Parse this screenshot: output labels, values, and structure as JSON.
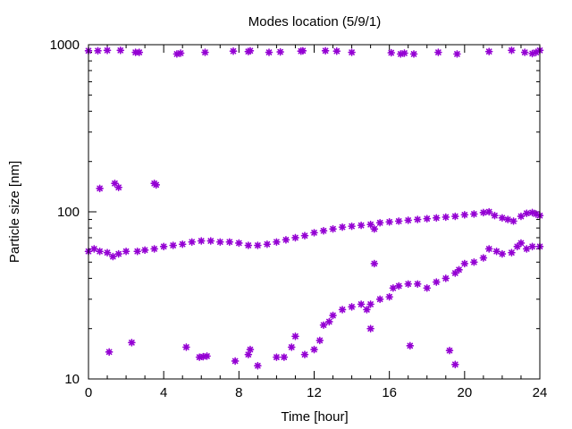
{
  "chart_data": {
    "type": "scatter",
    "title": "Modes location (5/9/1)",
    "xlabel": "Time [hour]",
    "ylabel": "Particle size [nm]",
    "xlim": [
      0,
      24
    ],
    "ylim": [
      10,
      1000
    ],
    "yscale": "log",
    "grid": false,
    "legend": "none",
    "marker": "star",
    "color": "#9400d3",
    "xticks": [
      0,
      4,
      8,
      12,
      16,
      20,
      24
    ],
    "xtick_labels": [
      "0",
      "4",
      "8",
      "12",
      "16",
      "20",
      "24"
    ],
    "yticks": [
      10,
      100,
      1000
    ],
    "ytick_labels": [
      "10",
      "100",
      "1000"
    ],
    "series": [
      {
        "name": "",
        "points": [
          [
            0.0,
            920
          ],
          [
            0.5,
            920
          ],
          [
            1.0,
            925
          ],
          [
            1.7,
            925
          ],
          [
            2.5,
            900
          ],
          [
            2.7,
            900
          ],
          [
            4.7,
            880
          ],
          [
            4.9,
            890
          ],
          [
            6.2,
            900
          ],
          [
            7.7,
            915
          ],
          [
            8.5,
            910
          ],
          [
            8.6,
            920
          ],
          [
            9.6,
            900
          ],
          [
            10.2,
            905
          ],
          [
            11.3,
            915
          ],
          [
            11.4,
            920
          ],
          [
            12.6,
            920
          ],
          [
            13.2,
            915
          ],
          [
            14.0,
            900
          ],
          [
            16.1,
            895
          ],
          [
            16.6,
            880
          ],
          [
            16.8,
            890
          ],
          [
            17.3,
            880
          ],
          [
            18.6,
            900
          ],
          [
            19.6,
            880
          ],
          [
            21.3,
            910
          ],
          [
            22.5,
            925
          ],
          [
            23.2,
            900
          ],
          [
            23.6,
            885
          ],
          [
            23.8,
            900
          ],
          [
            24.0,
            925
          ],
          [
            0.6,
            138
          ],
          [
            1.4,
            148
          ],
          [
            1.6,
            140
          ],
          [
            3.5,
            148
          ],
          [
            3.6,
            145
          ],
          [
            0.0,
            58
          ],
          [
            0.3,
            60
          ],
          [
            0.6,
            58
          ],
          [
            1.0,
            57
          ],
          [
            1.3,
            54
          ],
          [
            1.6,
            56
          ],
          [
            2.0,
            58
          ],
          [
            2.6,
            58
          ],
          [
            3.0,
            59
          ],
          [
            3.5,
            60
          ],
          [
            4.0,
            62
          ],
          [
            4.5,
            63
          ],
          [
            5.0,
            64
          ],
          [
            5.5,
            66
          ],
          [
            6.0,
            67
          ],
          [
            6.5,
            67
          ],
          [
            7.0,
            66
          ],
          [
            7.5,
            66
          ],
          [
            8.0,
            65
          ],
          [
            8.5,
            63
          ],
          [
            9.0,
            63
          ],
          [
            9.5,
            64
          ],
          [
            10.0,
            66
          ],
          [
            10.5,
            68
          ],
          [
            11.0,
            70
          ],
          [
            11.5,
            72
          ],
          [
            12.0,
            75
          ],
          [
            12.5,
            77
          ],
          [
            13.0,
            79
          ],
          [
            13.5,
            81
          ],
          [
            14.0,
            82
          ],
          [
            14.5,
            83
          ],
          [
            15.0,
            84
          ],
          [
            15.2,
            79
          ],
          [
            15.5,
            86
          ],
          [
            16.0,
            87
          ],
          [
            16.5,
            88
          ],
          [
            17.0,
            89
          ],
          [
            17.5,
            90
          ],
          [
            18.0,
            91
          ],
          [
            18.5,
            92
          ],
          [
            19.0,
            93
          ],
          [
            19.5,
            94
          ],
          [
            20.0,
            96
          ],
          [
            20.5,
            97
          ],
          [
            21.0,
            99
          ],
          [
            21.3,
            100
          ],
          [
            21.6,
            95
          ],
          [
            22.0,
            92
          ],
          [
            22.3,
            90
          ],
          [
            22.6,
            88
          ],
          [
            23.0,
            94
          ],
          [
            23.3,
            98
          ],
          [
            23.6,
            99
          ],
          [
            23.8,
            97
          ],
          [
            24.0,
            95
          ],
          [
            11.0,
            18
          ],
          [
            11.5,
            14
          ],
          [
            12.0,
            15
          ],
          [
            12.3,
            17
          ],
          [
            12.5,
            21
          ],
          [
            12.8,
            22
          ],
          [
            13.0,
            24
          ],
          [
            13.5,
            26
          ],
          [
            14.0,
            27
          ],
          [
            14.5,
            28
          ],
          [
            14.8,
            26
          ],
          [
            15.0,
            28
          ],
          [
            15.2,
            49
          ],
          [
            15.5,
            30
          ],
          [
            16.0,
            31
          ],
          [
            16.2,
            35
          ],
          [
            16.5,
            36
          ],
          [
            17.0,
            37
          ],
          [
            17.5,
            37
          ],
          [
            18.0,
            35
          ],
          [
            18.5,
            38
          ],
          [
            19.0,
            40
          ],
          [
            19.5,
            43
          ],
          [
            19.7,
            45
          ],
          [
            20.0,
            49
          ],
          [
            20.5,
            50
          ],
          [
            21.0,
            53
          ],
          [
            21.3,
            60
          ],
          [
            21.7,
            58
          ],
          [
            22.0,
            56
          ],
          [
            22.5,
            57
          ],
          [
            22.8,
            62
          ],
          [
            23.0,
            65
          ],
          [
            23.3,
            60
          ],
          [
            23.6,
            62
          ],
          [
            24.0,
            62
          ],
          [
            1.1,
            14.5
          ],
          [
            2.3,
            16.5
          ],
          [
            5.2,
            15.5
          ],
          [
            5.9,
            13.5
          ],
          [
            6.1,
            13.6
          ],
          [
            6.3,
            13.7
          ],
          [
            7.8,
            12.8
          ],
          [
            8.5,
            14
          ],
          [
            8.6,
            15
          ],
          [
            9.0,
            12
          ],
          [
            10.0,
            13.5
          ],
          [
            10.4,
            13.5
          ],
          [
            10.8,
            15.5
          ],
          [
            15.0,
            20
          ],
          [
            17.1,
            15.8
          ],
          [
            19.2,
            14.8
          ],
          [
            19.5,
            12.2
          ]
        ]
      }
    ]
  }
}
